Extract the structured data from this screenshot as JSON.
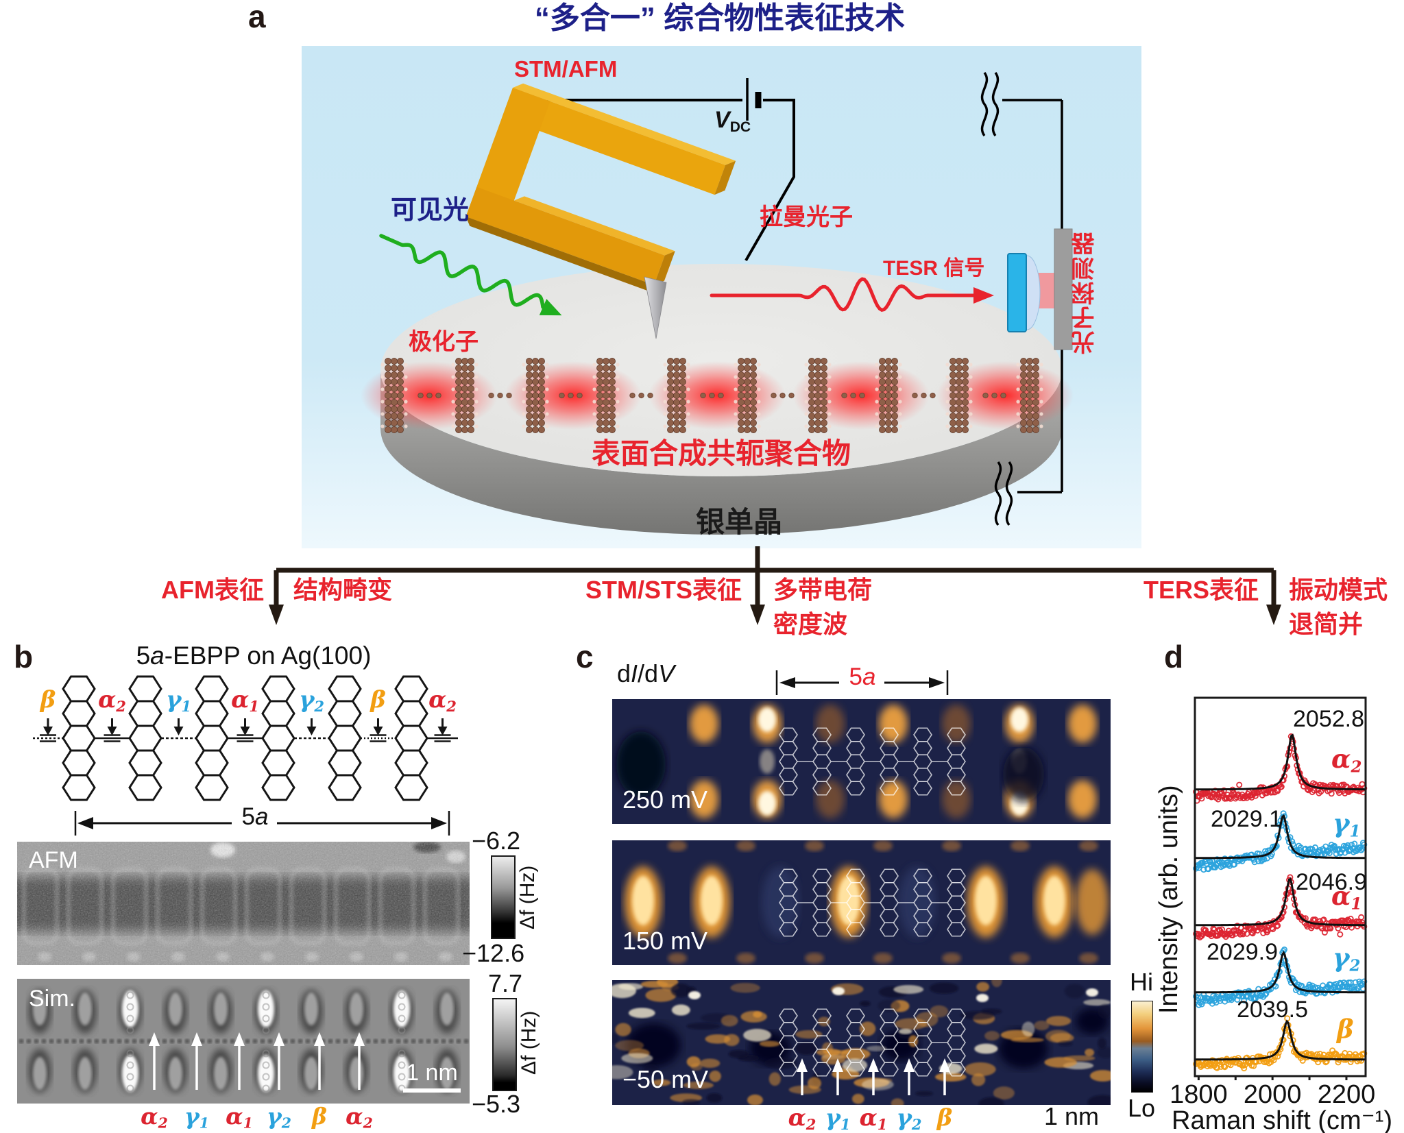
{
  "colors": {
    "title_navy": "#1d2088",
    "accent_red": "#e8232d",
    "alpha": "#dc2430",
    "gamma": "#2aa2dc",
    "beta": "#f29e12",
    "box_blue": "#c9e7f5",
    "gold": "#eaa50d",
    "map_hi": "#fbf0d2",
    "map_lo": "#05060f"
  },
  "panel_a": {
    "label": "a",
    "title": "“多合一” 综合物性表征技术",
    "stm_afm": "STM/AFM",
    "vdc_main": "V",
    "vdc_sub": "DC",
    "visible_light": "可见光",
    "polaron": "极化子",
    "raman_photon": "拉曼光子",
    "tesr_signal": "TESR 信号",
    "photon_detector": "光子探测器",
    "polymer": "表面合成共轭聚合物",
    "silver": "银单晶"
  },
  "branches": [
    {
      "technique": "AFM表征",
      "result1": "结构畸变",
      "result2": ""
    },
    {
      "technique": "STM/STS表征",
      "result1": "多带电荷",
      "result2": "密度波"
    },
    {
      "technique": "TERS表征",
      "result1": "振动模式",
      "result2": "退简并"
    }
  ],
  "panel_b": {
    "label": "b",
    "title_num": "5",
    "title_letter": "a",
    "title_rest": "-EBPP on Ag(100)",
    "structure_labels": [
      {
        "t": "β",
        "s": "",
        "c": "beta"
      },
      {
        "t": "α",
        "s": "2",
        "c": "alpha"
      },
      {
        "t": "γ",
        "s": "1",
        "c": "gamma"
      },
      {
        "t": "α",
        "s": "1",
        "c": "alpha"
      },
      {
        "t": "γ",
        "s": "2",
        "c": "gamma"
      },
      {
        "t": "β",
        "s": "",
        "c": "beta"
      },
      {
        "t": "α",
        "s": "2",
        "c": "alpha"
      }
    ],
    "span_num": "5",
    "span_letter": "a",
    "afm_label": "AFM",
    "sim_label": "Sim.",
    "afm_scale_top": "−6.2",
    "afm_scale_bottom": "−12.6",
    "sim_scale_top": "7.7",
    "sim_scale_bottom": "−5.3",
    "scale_unit": "Δf (Hz)",
    "scalebar": "1 nm",
    "sim_labels": [
      {
        "t": "α",
        "s": "2",
        "c": "alpha"
      },
      {
        "t": "γ",
        "s": "1",
        "c": "gamma"
      },
      {
        "t": "α",
        "s": "1",
        "c": "alpha"
      },
      {
        "t": "γ",
        "s": "2",
        "c": "gamma"
      },
      {
        "t": "β",
        "s": "",
        "c": "beta"
      },
      {
        "t": "α",
        "s": "2",
        "c": "alpha"
      }
    ]
  },
  "panel_c": {
    "label": "c",
    "didv": {
      "p1": "d",
      "p2": "I",
      "p3": "/d",
      "p4": "V"
    },
    "span_num": "5",
    "span_letter": "a",
    "maps": [
      {
        "bias": "250 mV"
      },
      {
        "bias": "150 mV"
      },
      {
        "bias": "−50 mV"
      }
    ],
    "colorbar_top": "Hi",
    "colorbar_bottom": "Lo",
    "scalebar": "1 nm",
    "peak_labels": [
      {
        "t": "α",
        "s": "2",
        "c": "alpha"
      },
      {
        "t": "γ",
        "s": "1",
        "c": "gamma"
      },
      {
        "t": "α",
        "s": "1",
        "c": "alpha"
      },
      {
        "t": "γ",
        "s": "2",
        "c": "gamma"
      },
      {
        "t": "β",
        "s": "",
        "c": "beta"
      }
    ]
  },
  "panel_d_label": "d",
  "chart_data": {
    "type": "scatter",
    "title": "",
    "xlabel": "Raman shift (cm⁻¹)",
    "ylabel": "Intensity (arb. units)",
    "xlim": [
      1790,
      2252
    ],
    "xticks": [
      "1800",
      "2000",
      "2200"
    ],
    "xticks_minor": [
      1900,
      2100
    ],
    "grid": false,
    "legend_position": "right of each curve",
    "series": [
      {
        "name": "α",
        "sub": "2",
        "peak_label": "2052.8",
        "peak_center": 2052.8,
        "color": "#dc2430",
        "fit": "lorentzian"
      },
      {
        "name": "γ",
        "sub": "1",
        "peak_label": "2029.1",
        "peak_center": 2029.1,
        "color": "#2aa2dc",
        "fit": "lorentzian"
      },
      {
        "name": "α",
        "sub": "1",
        "peak_label": "2046.9",
        "peak_center": 2046.9,
        "color": "#dc2430",
        "fit": "lorentzian"
      },
      {
        "name": "γ",
        "sub": "2",
        "peak_label": "2029.9",
        "peak_center": 2029.9,
        "color": "#2aa2dc",
        "fit": "lorentzian"
      },
      {
        "name": "β",
        "sub": "",
        "peak_label": "2039.5",
        "peak_center": 2039.5,
        "color": "#f29e12",
        "fit": "lorentzian"
      }
    ]
  }
}
